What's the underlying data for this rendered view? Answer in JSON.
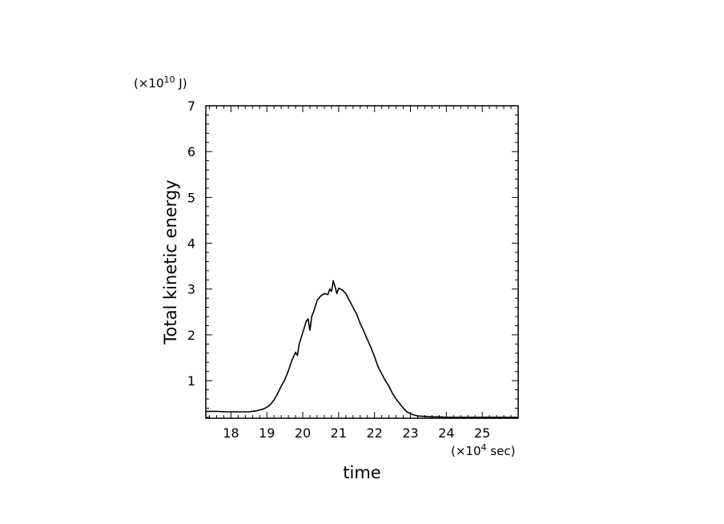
{
  "chart_data": {
    "type": "line",
    "title": "",
    "xlabel": "time",
    "ylabel": "Total kinetic energy",
    "x_unit_label": {
      "prefix": "(×10",
      "exp": "4",
      "suffix": " sec)"
    },
    "y_unit_label": {
      "prefix": "(×10",
      "exp": "10",
      "suffix": " J)"
    },
    "xlim": [
      17.3,
      26.0
    ],
    "ylim": [
      0.18,
      7.0
    ],
    "x_ticks": [
      "18",
      "19",
      "20",
      "21",
      "22",
      "23",
      "24",
      "25"
    ],
    "y_ticks": [
      "1",
      "2",
      "3",
      "4",
      "5",
      "6",
      "7"
    ],
    "grid": false,
    "line_color": "#000000",
    "series": [
      {
        "x": [
          17.3,
          17.6,
          17.9,
          18.2,
          18.5,
          18.7,
          18.9,
          19.0,
          19.1,
          19.2,
          19.3,
          19.4,
          19.5,
          19.6,
          19.7,
          19.8,
          19.85,
          19.9,
          20.0,
          20.1,
          20.15,
          20.2,
          20.25,
          20.3,
          20.4,
          20.5,
          20.6,
          20.7,
          20.75,
          20.8,
          20.85,
          20.9,
          20.95,
          21.0,
          21.1,
          21.2,
          21.3,
          21.4,
          21.5,
          21.6,
          21.7,
          21.8,
          21.9,
          22.0,
          22.1,
          22.2,
          22.3,
          22.4,
          22.5,
          22.6,
          22.7,
          22.8,
          22.9,
          23.0,
          23.1,
          23.2,
          23.4,
          23.6,
          23.8,
          24.0,
          24.3,
          24.6,
          25.0,
          25.4,
          25.8,
          26.0
        ],
        "y": [
          0.33,
          0.33,
          0.32,
          0.32,
          0.32,
          0.34,
          0.38,
          0.42,
          0.48,
          0.58,
          0.72,
          0.88,
          1.02,
          1.22,
          1.45,
          1.62,
          1.55,
          1.8,
          2.05,
          2.3,
          2.35,
          2.1,
          2.4,
          2.5,
          2.75,
          2.85,
          2.9,
          2.88,
          3.0,
          2.95,
          3.18,
          3.05,
          2.9,
          3.02,
          2.98,
          2.9,
          2.75,
          2.6,
          2.45,
          2.25,
          2.08,
          1.9,
          1.72,
          1.52,
          1.3,
          1.15,
          1.0,
          0.88,
          0.72,
          0.6,
          0.5,
          0.4,
          0.32,
          0.28,
          0.25,
          0.23,
          0.22,
          0.21,
          0.21,
          0.2,
          0.2,
          0.2,
          0.2,
          0.2,
          0.2,
          0.2
        ]
      }
    ]
  }
}
